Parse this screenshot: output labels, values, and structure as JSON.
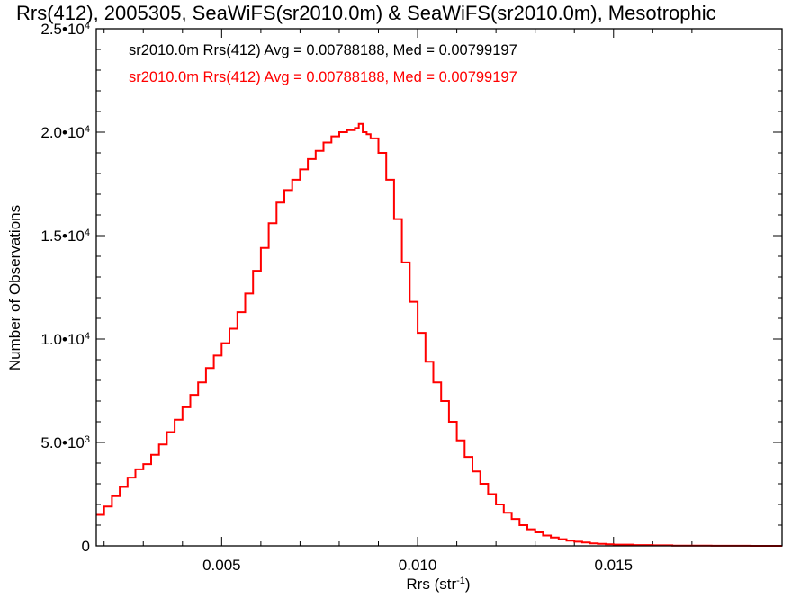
{
  "colors": {
    "series_primary": "#ff0000",
    "series_secondary": "#000000",
    "axes": "#000000",
    "background": "#ffffff"
  },
  "chart_data": {
    "type": "line",
    "title": "Rrs(412), 2005305, SeaWiFS(sr2010.0m) & SeaWiFS(sr2010.0m), Mesotrophic",
    "xlabel": {
      "base": "Rrs (str",
      "sup": "-1",
      "tail": ")"
    },
    "ylabel": "Number of Observations",
    "xlim": [
      0.0018,
      0.0193
    ],
    "ylim": [
      0,
      25000
    ],
    "x_ticks": [
      {
        "value": 0.005,
        "label": "0.005"
      },
      {
        "value": 0.01,
        "label": "0.010"
      },
      {
        "value": 0.015,
        "label": "0.015"
      }
    ],
    "y_ticks": [
      {
        "value": 0,
        "mant": "0",
        "exp": ""
      },
      {
        "value": 5000,
        "mant": "5.0•1",
        "exp": "3"
      },
      {
        "value": 10000,
        "mant": "1.0•1",
        "exp": "4"
      },
      {
        "value": 15000,
        "mant": "1.5•1",
        "exp": "4"
      },
      {
        "value": 20000,
        "mant": "2.0•1",
        "exp": "4"
      },
      {
        "value": 25000,
        "mant": "2.5•1",
        "exp": "4"
      }
    ],
    "legend": [
      {
        "text": "sr2010.0m Rrs(412) Avg = 0.00788188, Med = 0.00799197",
        "color": "#000000"
      },
      {
        "text": "sr2010.0m Rrs(412) Avg = 0.00788188, Med = 0.00799197",
        "color": "#ff0000"
      }
    ],
    "legend_position": "top-left",
    "grid": false,
    "series": [
      {
        "color": "#ff0000",
        "style": "step",
        "x": [
          0.0018,
          0.002,
          0.0022,
          0.0024,
          0.0026,
          0.0028,
          0.003,
          0.0032,
          0.0034,
          0.0036,
          0.0038,
          0.004,
          0.0042,
          0.0044,
          0.0046,
          0.0048,
          0.005,
          0.0052,
          0.0054,
          0.0056,
          0.0058,
          0.006,
          0.0062,
          0.0064,
          0.0066,
          0.0068,
          0.007,
          0.0072,
          0.0074,
          0.0076,
          0.0078,
          0.008,
          0.0082,
          0.0084,
          0.0085,
          0.0086,
          0.0087,
          0.0088,
          0.009,
          0.0092,
          0.0094,
          0.0096,
          0.0098,
          0.01,
          0.0102,
          0.0104,
          0.0106,
          0.0108,
          0.011,
          0.0112,
          0.0114,
          0.0116,
          0.0118,
          0.012,
          0.0122,
          0.0124,
          0.0126,
          0.0128,
          0.013,
          0.0132,
          0.0134,
          0.0136,
          0.0138,
          0.014,
          0.0142,
          0.0144,
          0.0146,
          0.0148,
          0.015,
          0.0155,
          0.016,
          0.0165,
          0.017,
          0.0175,
          0.018,
          0.0185,
          0.019,
          0.0193
        ],
        "y": [
          1500,
          1900,
          2400,
          2850,
          3300,
          3700,
          3950,
          4400,
          4900,
          5500,
          6100,
          6700,
          7300,
          7900,
          8600,
          9200,
          9800,
          10500,
          11300,
          12200,
          13300,
          14400,
          15600,
          16600,
          17200,
          17700,
          18200,
          18700,
          19100,
          19500,
          19800,
          20000,
          20100,
          20200,
          20400,
          20000,
          19900,
          19700,
          19000,
          17700,
          15800,
          13700,
          11800,
          10300,
          8900,
          7900,
          7000,
          6000,
          5100,
          4300,
          3600,
          3000,
          2500,
          2000,
          1600,
          1300,
          1000,
          800,
          650,
          500,
          400,
          320,
          250,
          200,
          160,
          120,
          100,
          80,
          60,
          40,
          25,
          15,
          10,
          5,
          3,
          2,
          0,
          0
        ]
      }
    ]
  }
}
